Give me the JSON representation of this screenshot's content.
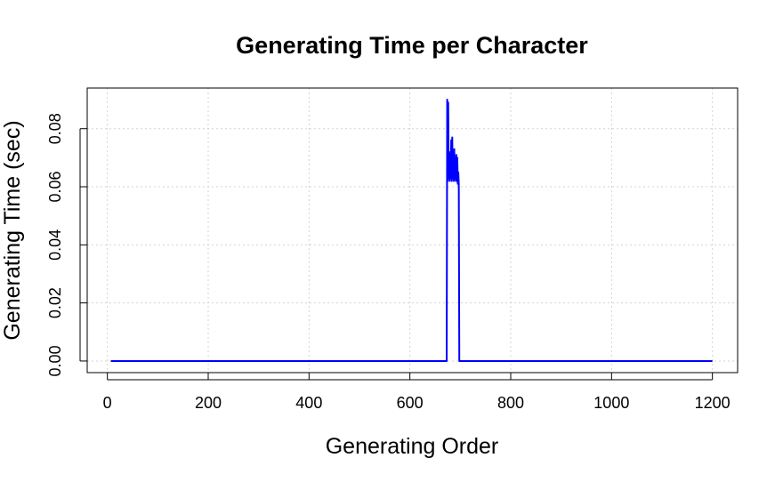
{
  "chart_data": {
    "type": "line",
    "title": "Generating Time per Character",
    "xlabel": "Generating Order",
    "ylabel": "Generating Time (sec)",
    "xlim": [
      -40,
      1250
    ],
    "ylim": [
      -0.004,
      0.094
    ],
    "xticks": [
      0,
      200,
      400,
      600,
      800,
      1000,
      1200
    ],
    "xtick_labels": [
      "0",
      "200",
      "400",
      "600",
      "800",
      "1000",
      "1200"
    ],
    "yticks": [
      0.0,
      0.02,
      0.04,
      0.06,
      0.08
    ],
    "ytick_labels": [
      "0.00",
      "0.02",
      "0.04",
      "0.06",
      "0.08"
    ],
    "grid": true,
    "series": [
      {
        "color": "#0000ff",
        "x": [
          7,
          673,
          674,
          675,
          676,
          677,
          678,
          679,
          680,
          681,
          682,
          683,
          684,
          685,
          686,
          687,
          688,
          689,
          690,
          691,
          692,
          693,
          694,
          695,
          696,
          697,
          698,
          1200
        ],
        "y": [
          0.0,
          0.0,
          0.09,
          0.062,
          0.089,
          0.063,
          0.072,
          0.062,
          0.07,
          0.063,
          0.076,
          0.062,
          0.077,
          0.063,
          0.068,
          0.062,
          0.073,
          0.063,
          0.066,
          0.062,
          0.071,
          0.062,
          0.07,
          0.061,
          0.065,
          0.061,
          0.0,
          0.0
        ]
      }
    ]
  }
}
